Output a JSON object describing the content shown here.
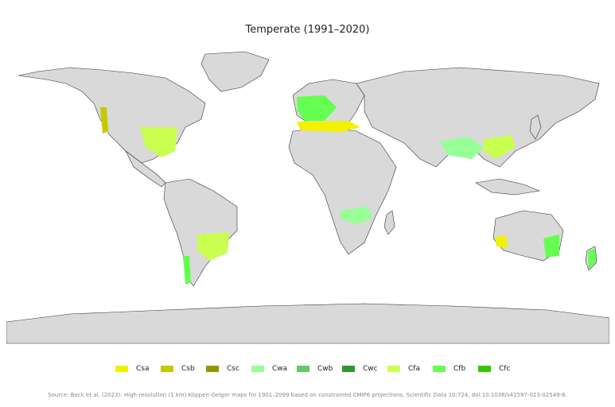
{
  "title": "Temperate (1991–2020)",
  "map": {
    "ocean_color": "#ffffff",
    "land_color": "#d9d9d9",
    "border_color": "#333333"
  },
  "legend": [
    {
      "code": "Csa",
      "color": "#f2f200"
    },
    {
      "code": "Csb",
      "color": "#c8c800"
    },
    {
      "code": "Csc",
      "color": "#969600"
    },
    {
      "code": "Cwa",
      "color": "#96ff96"
    },
    {
      "code": "Cwb",
      "color": "#64c864"
    },
    {
      "code": "Cwc",
      "color": "#329632"
    },
    {
      "code": "Cfa",
      "color": "#c8ff50"
    },
    {
      "code": "Cfb",
      "color": "#64ff50"
    },
    {
      "code": "Cfc",
      "color": "#32c800"
    }
  ],
  "source": "Source: Beck et al. (2023): High-resolution (1 km) Köppen-Geiger maps for 1901–2099 based on constrained CMIP6 projections, Scientific Data 10:724, doi:10.1038/s41597-023-02549-6."
}
